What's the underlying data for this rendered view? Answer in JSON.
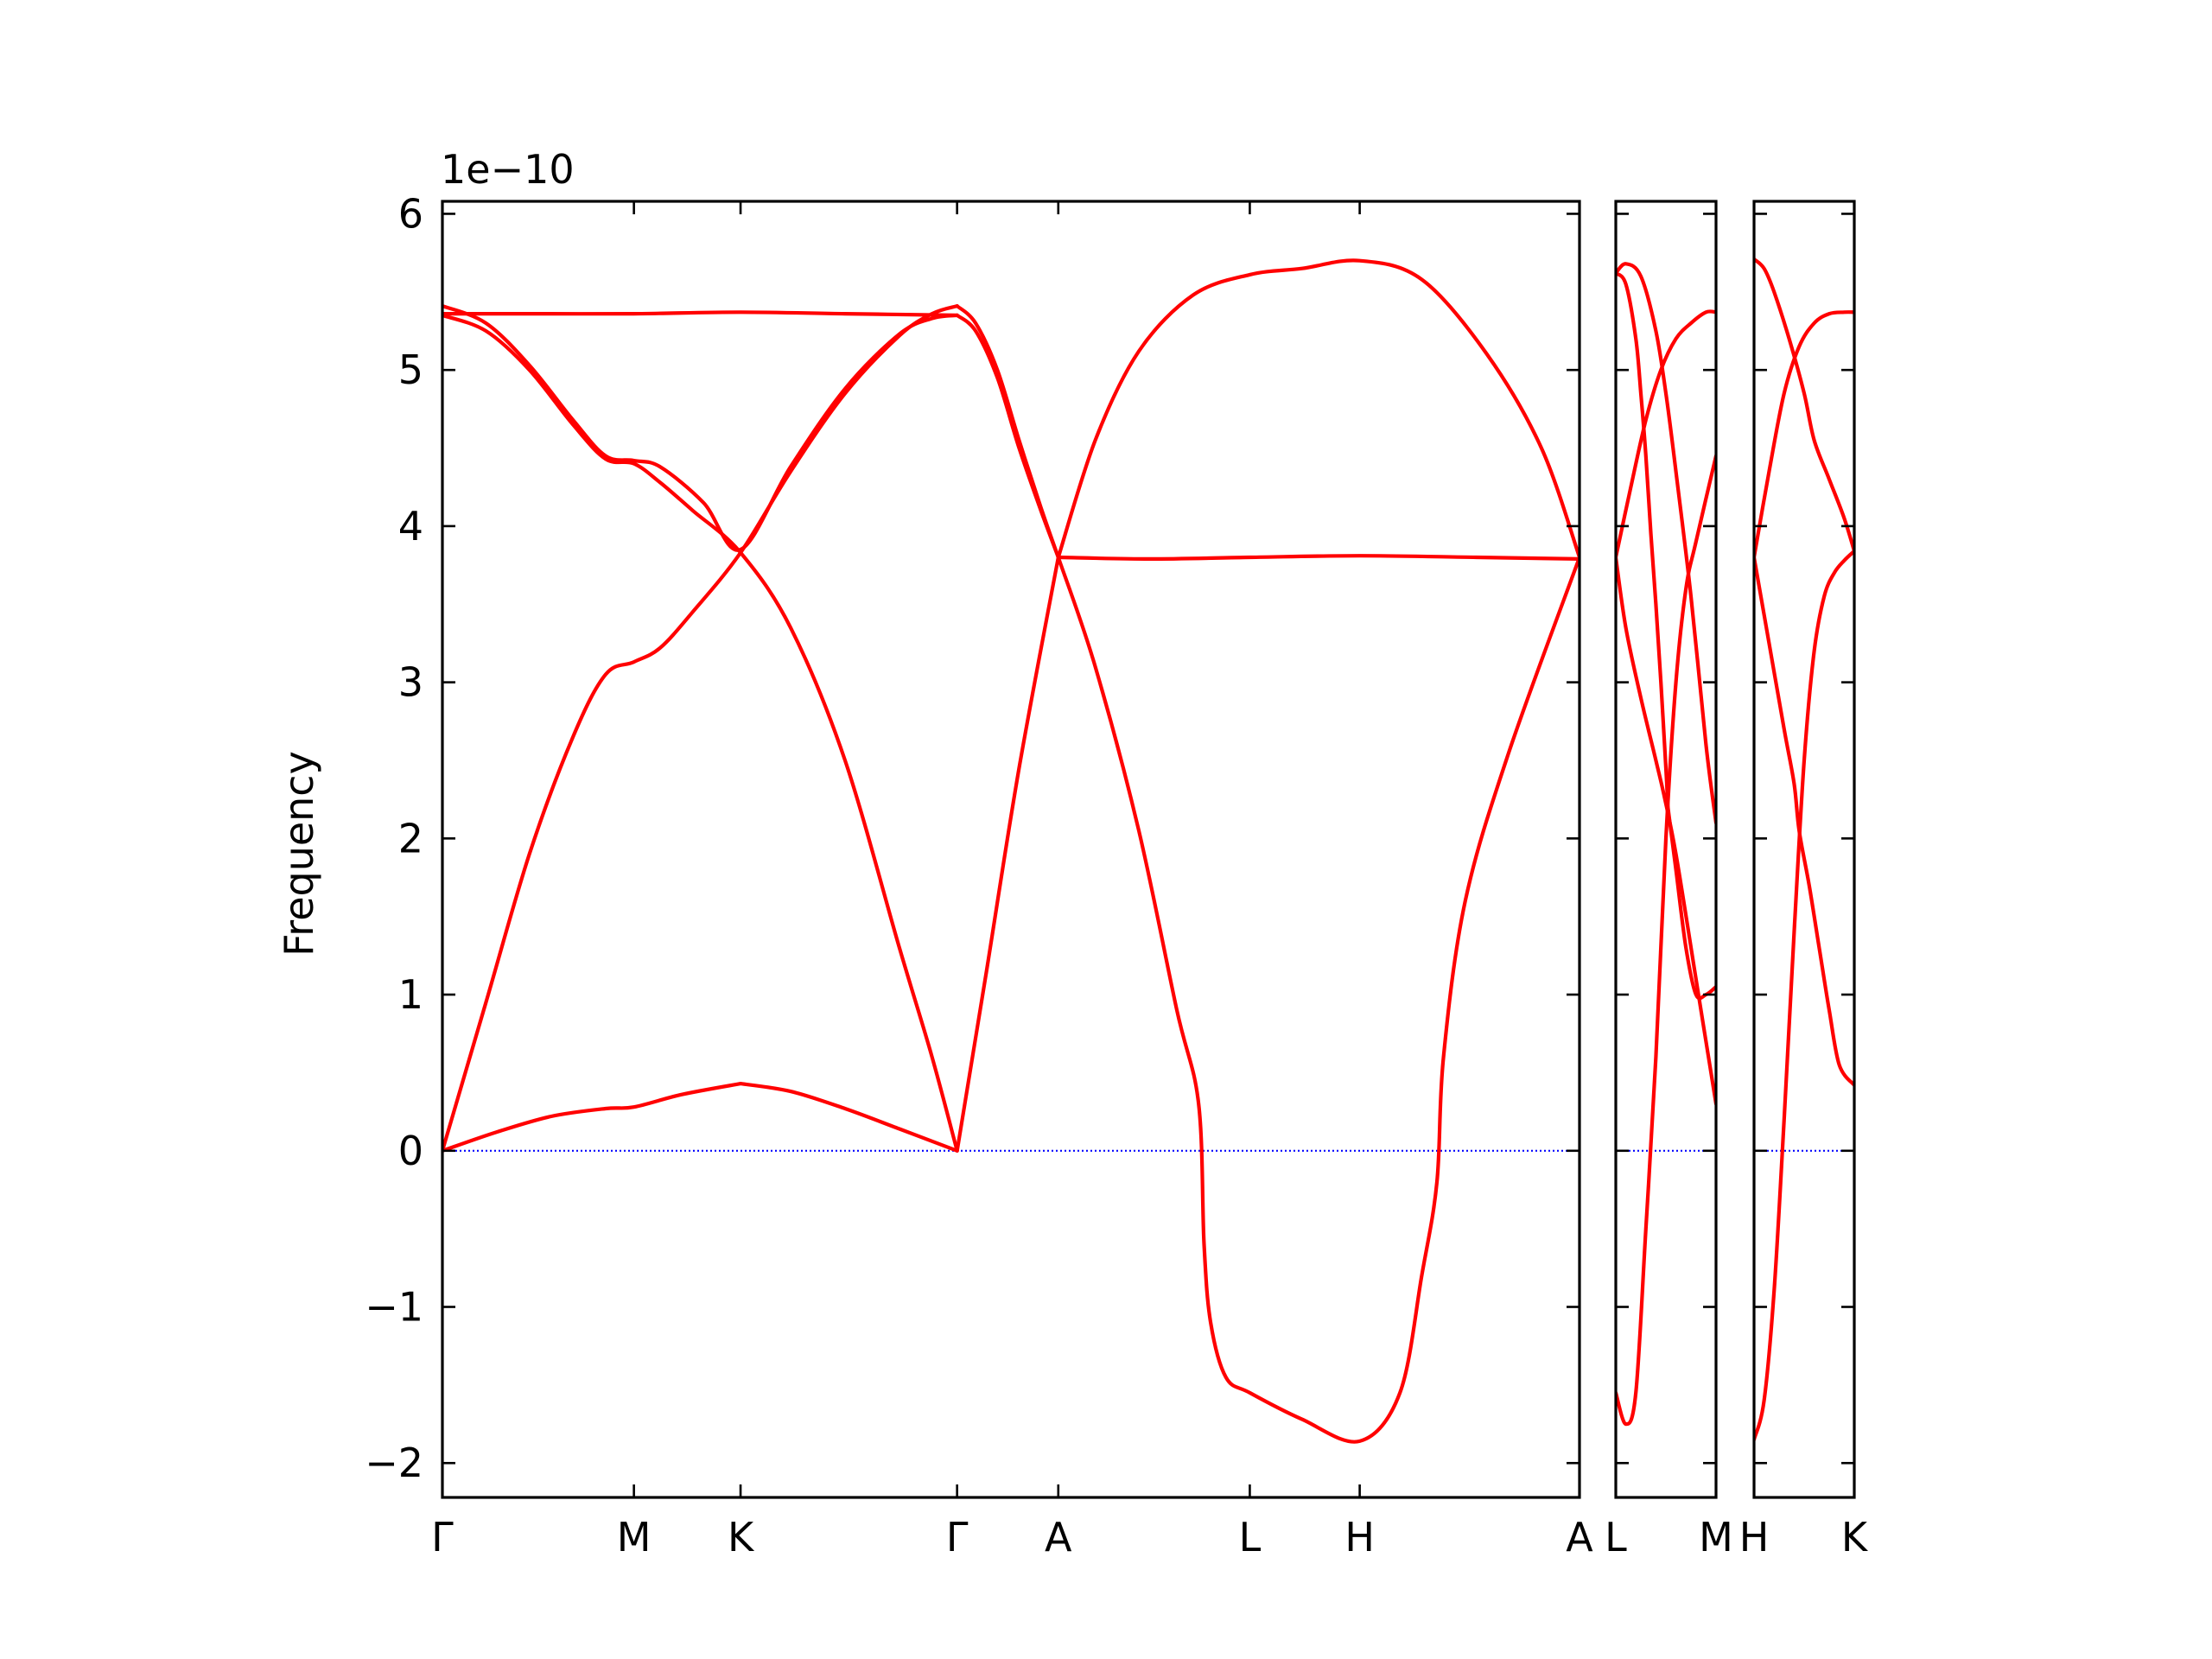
{
  "chart_data": {
    "type": "line",
    "ylabel": "Frequency",
    "y_offset_text": "1e−10",
    "ylim": [
      -2.22,
      6.08
    ],
    "yticks": [
      -2,
      -1,
      0,
      1,
      2,
      3,
      4,
      5,
      6
    ],
    "ytick_labels": [
      "−2",
      "−1",
      "0",
      "1",
      "2",
      "3",
      "4",
      "5",
      "6"
    ],
    "colors": {
      "band": "#ff0000",
      "zero_line": "#0000ff",
      "axes": "#000000"
    },
    "line_color_semantics": "bands red, zero reference dotted blue",
    "panels": [
      {
        "xlim": [
          0,
          10.45
        ],
        "xticks": [
          0,
          1.76,
          2.74,
          4.73,
          5.66,
          7.42,
          8.43,
          10.45
        ],
        "xtick_labels": [
          "Γ",
          "M",
          "K",
          "Γ",
          "A",
          "L",
          "H",
          "A"
        ],
        "segments": [
          {
            "x_range": [
              0,
              4.73
            ],
            "bands": [
              {
                "x": [
                  0,
                  0.5,
                  1.0,
                  1.5,
                  1.76,
                  2.2,
                  2.74
                ],
                "y": [
                  0.0,
                  0.12,
                  0.22,
                  0.27,
                  0.28,
                  0.36,
                  0.43
                ]
              },
              {
                "x": [
                  2.74,
                  3.2,
                  3.7,
                  4.2,
                  4.73
                ],
                "y": [
                  0.43,
                  0.38,
                  0.27,
                  0.14,
                  0.0
                ]
              },
              {
                "x": [
                  0,
                  0.4,
                  0.8,
                  1.2,
                  1.5,
                  1.76,
                  2.0,
                  2.3,
                  2.74,
                  3.2,
                  3.7,
                  4.2,
                  4.5,
                  4.73
                ],
                "y": [
                  0.0,
                  0.95,
                  1.9,
                  2.65,
                  3.05,
                  3.13,
                  3.22,
                  3.45,
                  3.83,
                  4.35,
                  4.85,
                  5.22,
                  5.36,
                  5.41
                ]
              },
              {
                "x": [
                  0,
                  0.4,
                  0.8,
                  1.2,
                  1.5,
                  1.76,
                  2.0,
                  2.3,
                  2.74,
                  3.2,
                  3.7,
                  4.2,
                  4.5,
                  4.73
                ],
                "y": [
                  5.35,
                  5.25,
                  5.0,
                  4.65,
                  4.43,
                  4.4,
                  4.28,
                  4.1,
                  3.83,
                  3.35,
                  2.5,
                  1.3,
                  0.6,
                  0.0
                ]
              },
              {
                "x": [
                  0,
                  0.4,
                  0.8,
                  1.2,
                  1.5,
                  1.76,
                  2.0,
                  2.4,
                  2.74,
                  3.2,
                  3.7,
                  4.2,
                  4.5,
                  4.73
                ],
                "y": [
                  5.41,
                  5.3,
                  5.03,
                  4.68,
                  4.45,
                  4.42,
                  4.38,
                  4.15,
                  3.85,
                  4.38,
                  4.88,
                  5.23,
                  5.33,
                  5.35
                ]
              },
              {
                "x": [
                  0,
                  0.9,
                  1.76,
                  2.74,
                  3.7,
                  4.73
                ],
                "y": [
                  5.36,
                  5.36,
                  5.36,
                  5.37,
                  5.36,
                  5.35
                ]
              }
            ]
          },
          {
            "x_range": [
              4.73,
              5.66
            ],
            "bands": [
              {
                "x": [
                  4.73,
                  5.0,
                  5.3,
                  5.66
                ],
                "y": [
                  0.0,
                  1.15,
                  2.45,
                  3.8
                ]
              },
              {
                "x": [
                  4.73,
                  4.9,
                  5.1,
                  5.3,
                  5.5,
                  5.66
                ],
                "y": [
                  5.41,
                  5.3,
                  5.0,
                  4.55,
                  4.12,
                  3.8
                ]
              },
              {
                "x": [
                  4.73,
                  4.9,
                  5.1,
                  5.3,
                  5.5,
                  5.66
                ],
                "y": [
                  5.35,
                  5.25,
                  4.95,
                  4.5,
                  4.1,
                  3.8
                ]
              }
            ]
          },
          {
            "x_range": [
              5.66,
              10.45
            ],
            "bands": [
              {
                "x": [
                  5.66,
                  6.0,
                  6.4,
                  6.9,
                  7.42,
                  7.9,
                  8.43,
                  9.0,
                  9.6,
                  10.1,
                  10.45
                ],
                "y": [
                  3.8,
                  4.55,
                  5.12,
                  5.48,
                  5.61,
                  5.65,
                  5.7,
                  5.58,
                  5.1,
                  4.5,
                  3.8
                ]
              },
              {
                "x": [
                  5.66,
                  6.5,
                  7.42,
                  8.43,
                  9.5,
                  10.45
                ],
                "y": [
                  3.8,
                  3.79,
                  3.8,
                  3.81,
                  3.8,
                  3.79
                ]
              },
              {
                "x": [
                  5.66,
                  6.0,
                  6.4,
                  6.75,
                  6.95,
                  7.0,
                  7.06,
                  7.2,
                  7.42,
                  7.9,
                  8.43,
                  8.8,
                  9.0,
                  9.14,
                  9.2,
                  9.4,
                  9.8,
                  10.45
                ],
                "y": [
                  3.8,
                  3.1,
                  2.05,
                  0.9,
                  0.3,
                  -0.6,
                  -1.1,
                  -1.45,
                  -1.55,
                  -1.72,
                  -1.86,
                  -1.55,
                  -0.8,
                  -0.2,
                  0.6,
                  1.6,
                  2.55,
                  3.8
                ]
              }
            ]
          }
        ]
      },
      {
        "xlim": [
          0,
          1.0
        ],
        "xticks": [
          0,
          1.0
        ],
        "xtick_labels": [
          "L",
          "M"
        ],
        "bands": [
          {
            "x": [
              0,
              0.1,
              0.25,
              0.4,
              0.5,
              0.6,
              0.75,
              0.9,
              1.0
            ],
            "y": [
              5.62,
              5.68,
              5.6,
              5.25,
              4.85,
              4.35,
              3.55,
              2.6,
              2.1
            ]
          },
          {
            "x": [
              0,
              0.1,
              0.25,
              0.4,
              0.48,
              0.6,
              0.8,
              1.0
            ],
            "y": [
              3.8,
              3.35,
              2.9,
              2.5,
              2.28,
              1.9,
              1.1,
              0.3
            ]
          },
          {
            "x": [
              0,
              0.15,
              0.3,
              0.45,
              0.6,
              0.75,
              0.9,
              1.0
            ],
            "y": [
              3.8,
              4.25,
              4.68,
              5.0,
              5.2,
              5.3,
              5.37,
              5.37
            ]
          },
          {
            "x": [
              0,
              0.1,
              0.2,
              0.25,
              0.3,
              0.35,
              0.4,
              0.45,
              0.5,
              0.52
            ],
            "y": [
              5.62,
              5.55,
              5.2,
              4.85,
              4.45,
              3.95,
              3.5,
              3.0,
              2.45,
              2.2
            ]
          },
          {
            "x": [
              0.52,
              0.6,
              0.7,
              0.8,
              0.9,
              1.0
            ],
            "y": [
              2.2,
              1.8,
              1.3,
              1.0,
              1.0,
              1.05
            ]
          },
          {
            "x": [
              0,
              0.1,
              0.2,
              0.3,
              0.4,
              0.5,
              0.6,
              0.7,
              0.8,
              1.0
            ],
            "y": [
              -1.55,
              -1.75,
              -1.55,
              -0.5,
              0.6,
              2.0,
              3.0,
              3.6,
              3.9,
              4.45
            ]
          }
        ]
      },
      {
        "xlim": [
          0,
          1.0
        ],
        "xticks": [
          0,
          1.0
        ],
        "xtick_labels": [
          "H",
          "K"
        ],
        "bands": [
          {
            "x": [
              0,
              0.1,
              0.2,
              0.35,
              0.5,
              0.6,
              0.75,
              0.9,
              1.0
            ],
            "y": [
              5.71,
              5.65,
              5.5,
              5.2,
              4.85,
              4.55,
              4.3,
              4.05,
              3.84
            ]
          },
          {
            "x": [
              0,
              0.15,
              0.3,
              0.45,
              0.6,
              0.75,
              0.9,
              1.0
            ],
            "y": [
              3.8,
              4.35,
              4.85,
              5.15,
              5.3,
              5.36,
              5.37,
              5.37
            ]
          },
          {
            "x": [
              0,
              0.15,
              0.3,
              0.4,
              0.45,
              0.55,
              0.65,
              0.75,
              0.85,
              1.0
            ],
            "y": [
              3.8,
              3.25,
              2.7,
              2.35,
              2.05,
              1.7,
              1.3,
              0.9,
              0.55,
              0.42
            ]
          },
          {
            "x": [
              0,
              0.1,
              0.2,
              0.3,
              0.4,
              0.5,
              0.6,
              0.7,
              0.8,
              0.9,
              1.0
            ],
            "y": [
              -1.85,
              -1.6,
              -0.9,
              0.2,
              1.4,
              2.5,
              3.2,
              3.55,
              3.7,
              3.78,
              3.84
            ]
          }
        ]
      }
    ]
  }
}
